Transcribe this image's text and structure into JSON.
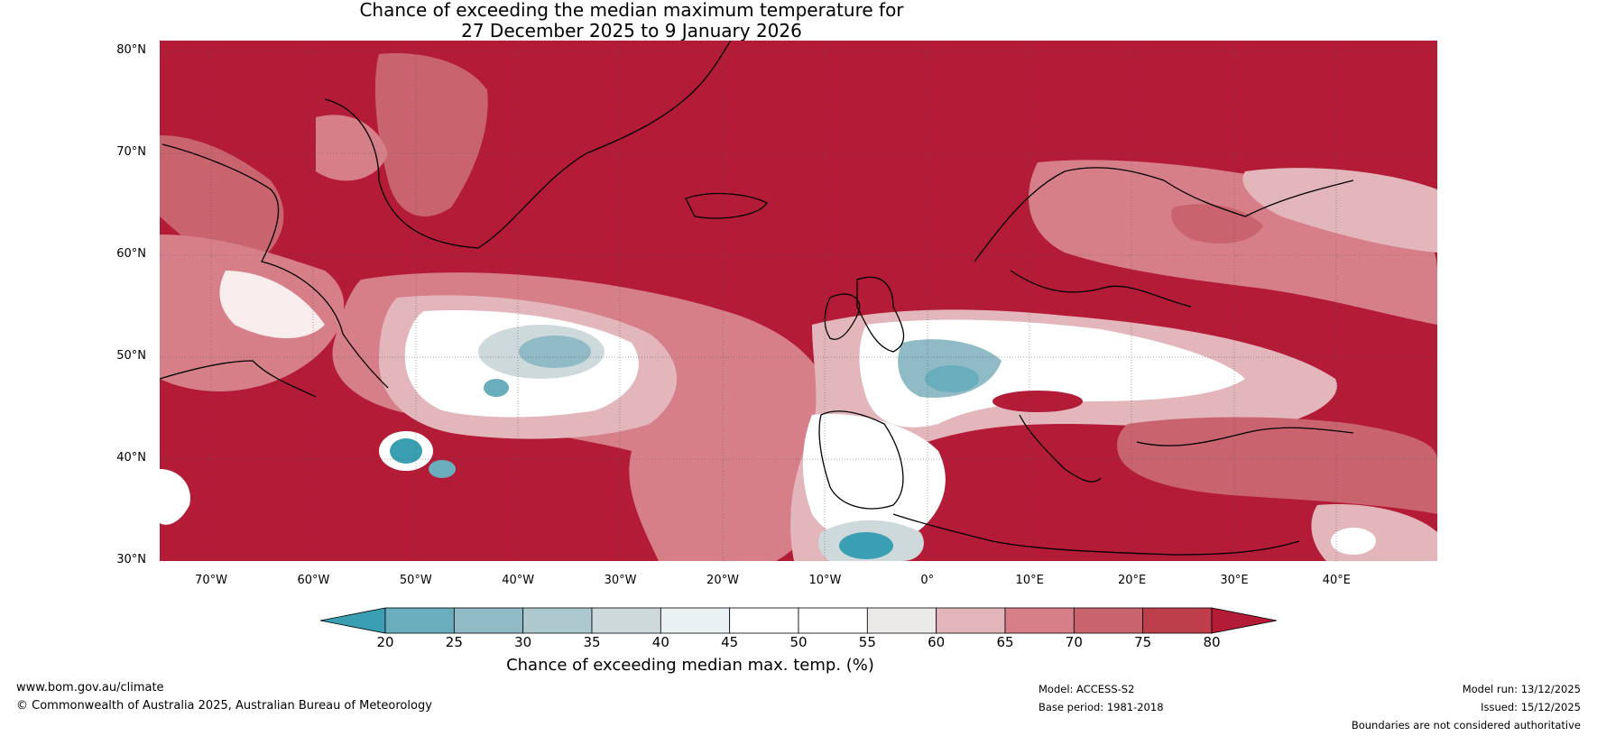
{
  "title_line1": "Chance of exceeding the median maximum temperature for",
  "title_line2": "27 December 2025 to 9 January 2026",
  "map": {
    "lat_labels": [
      "80°N",
      "70°N",
      "60°N",
      "50°N",
      "40°N",
      "30°N"
    ],
    "lon_labels": [
      "70°W",
      "60°W",
      "50°W",
      "40°W",
      "30°W",
      "20°W",
      "10°W",
      "0°",
      "10°E",
      "20°E",
      "30°E",
      "40°E"
    ],
    "lat_range": [
      30,
      81
    ],
    "lon_range": [
      -75,
      50
    ]
  },
  "colorbar": {
    "ticks": [
      "20",
      "25",
      "30",
      "35",
      "40",
      "45",
      "50",
      "55",
      "60",
      "65",
      "70",
      "75",
      "80"
    ],
    "colors": [
      "#3a9fb3",
      "#6aaebd",
      "#8fbac6",
      "#aec9ce",
      "#ced9dc",
      "#e9f1f3",
      "#ffffff",
      "#ffffff",
      "#eceae8",
      "#e3b6bc",
      "#d67f89",
      "#c9646e",
      "#bf3e4c",
      "#b31b37"
    ],
    "title": "Chance of exceeding median max. temp. (%)"
  },
  "footer": {
    "url": "www.bom.gov.au/climate",
    "copyright": "© Commonwealth of Australia 2025, Australian Bureau of Meteorology",
    "model": "Model: ACCESS-S2",
    "base_period": "Base period: 1981-2018",
    "model_run": "Model run: 13/12/2025",
    "issued": "Issued: 15/12/2025",
    "disclaimer": "Boundaries are not considered authoritative"
  }
}
